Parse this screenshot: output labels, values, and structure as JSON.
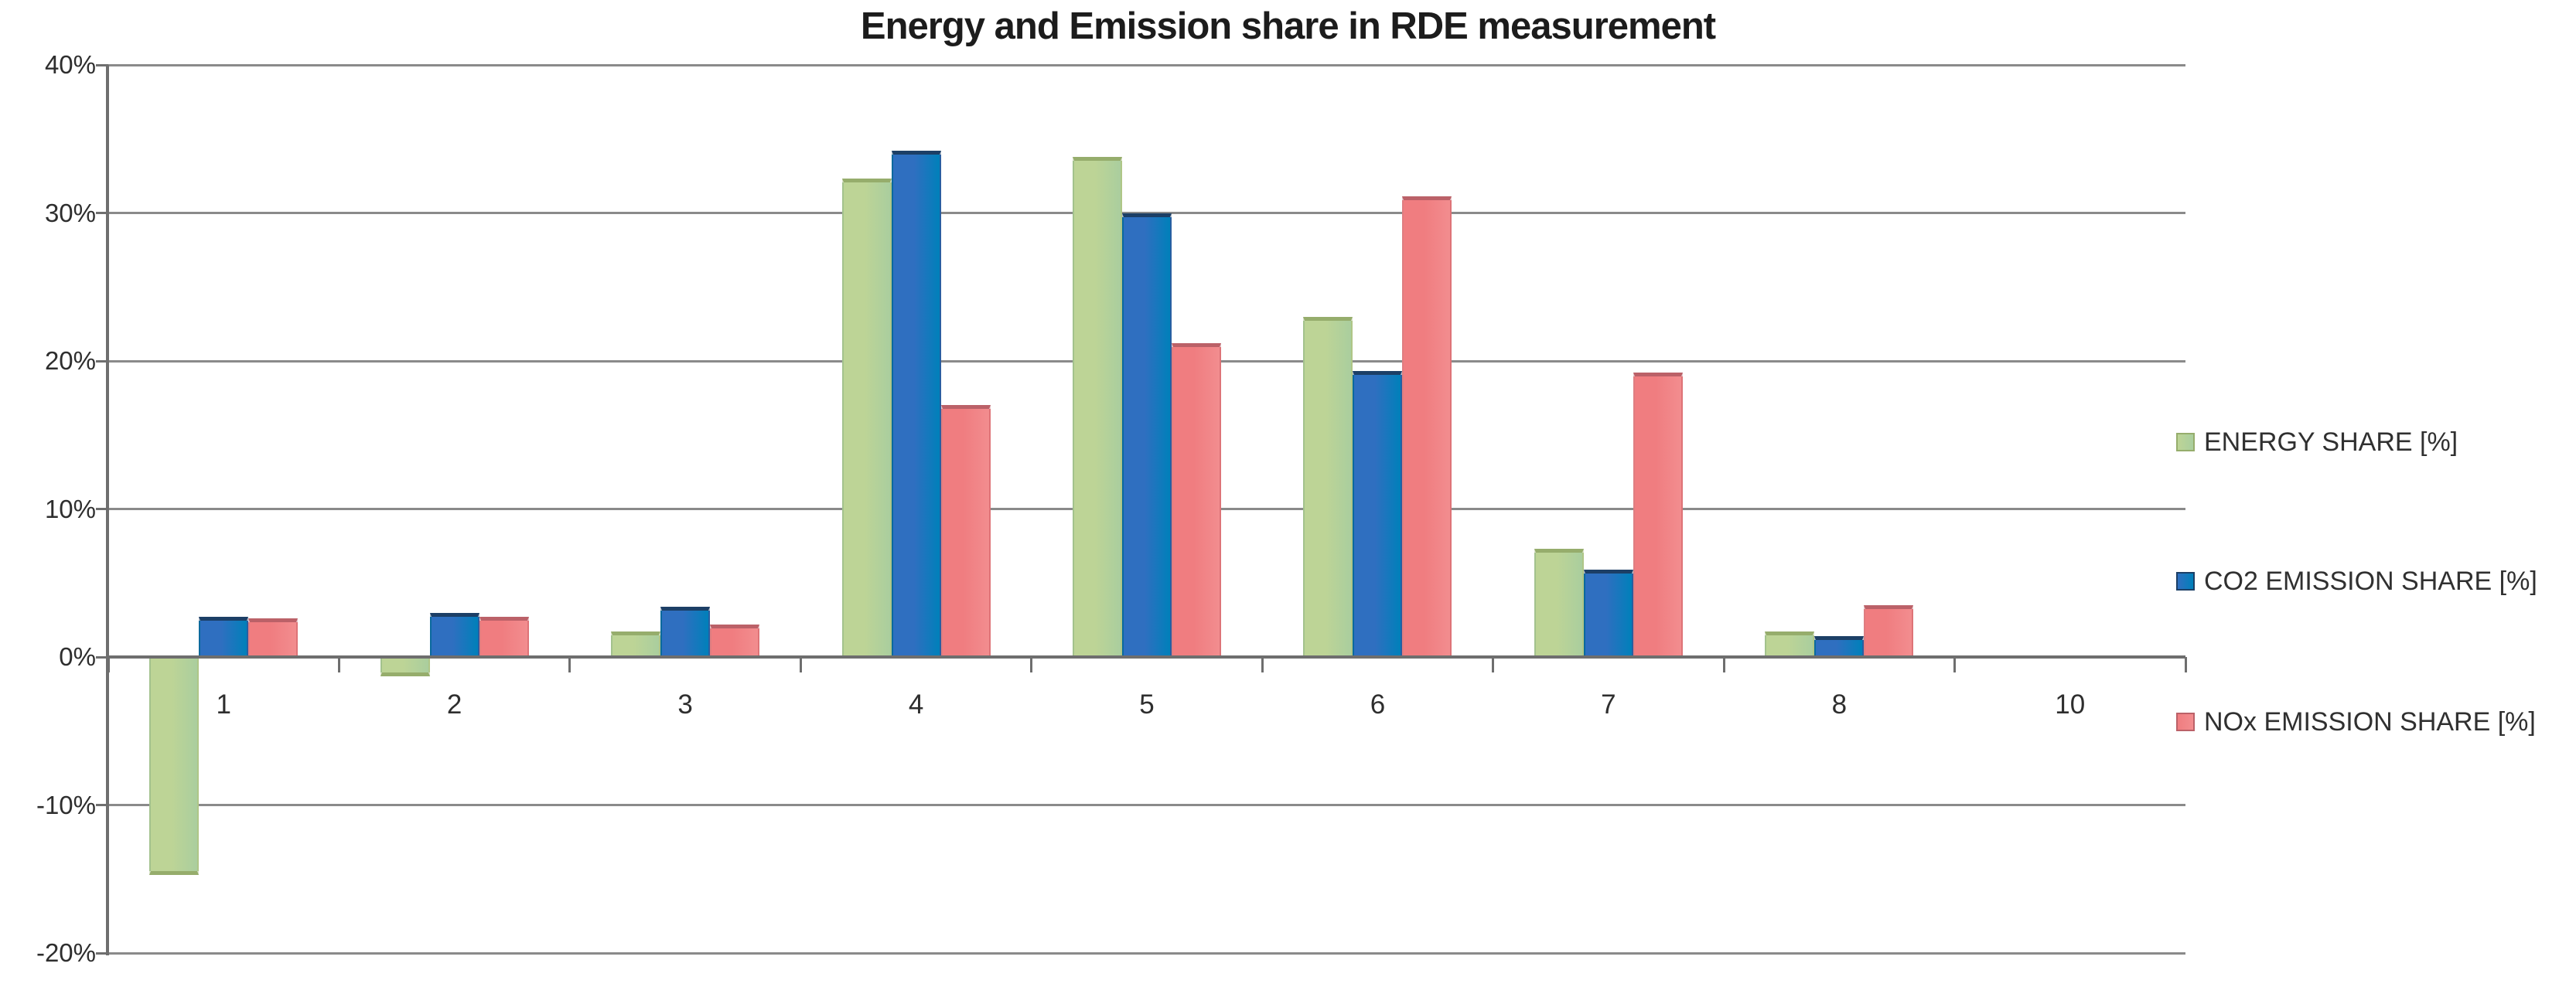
{
  "chart_data": {
    "type": "bar",
    "title": "Energy and Emission share in RDE measurement",
    "categories": [
      "1",
      "2",
      "3",
      "4",
      "5",
      "6",
      "7",
      "8",
      "10"
    ],
    "series": [
      {
        "name": "ENERGY SHARE [%]",
        "color": "#bdd496",
        "color2": "#aace9e",
        "edge": "#96ad6c",
        "values": [
          -14.7,
          -1.3,
          1.7,
          32.3,
          33.8,
          23.0,
          7.3,
          1.7,
          0
        ]
      },
      {
        "name": "CO2 EMISSION SHARE [%]",
        "color": "#2f6fc0",
        "color2": "#0080ba",
        "edge": "#1c3f66",
        "values": [
          2.7,
          3.0,
          3.4,
          34.2,
          30.0,
          19.3,
          5.9,
          1.4,
          0
        ]
      },
      {
        "name": "NOx EMISSION SHARE [%]",
        "color": "#f07d80",
        "color2": "#f28d8f",
        "edge": "#bb6168",
        "values": [
          2.6,
          2.7,
          2.2,
          17.0,
          21.2,
          31.1,
          19.2,
          3.5,
          0
        ]
      }
    ],
    "ylim": [
      -20,
      40
    ],
    "yticks": [
      40,
      30,
      20,
      10,
      0,
      -10,
      -20
    ],
    "ytick_labels": [
      "40%",
      "30%",
      "20%",
      "10%",
      "0%",
      "-10%",
      "-20%"
    ],
    "xlabel": "",
    "ylabel": "",
    "grid": true,
    "legend_position": "right"
  }
}
